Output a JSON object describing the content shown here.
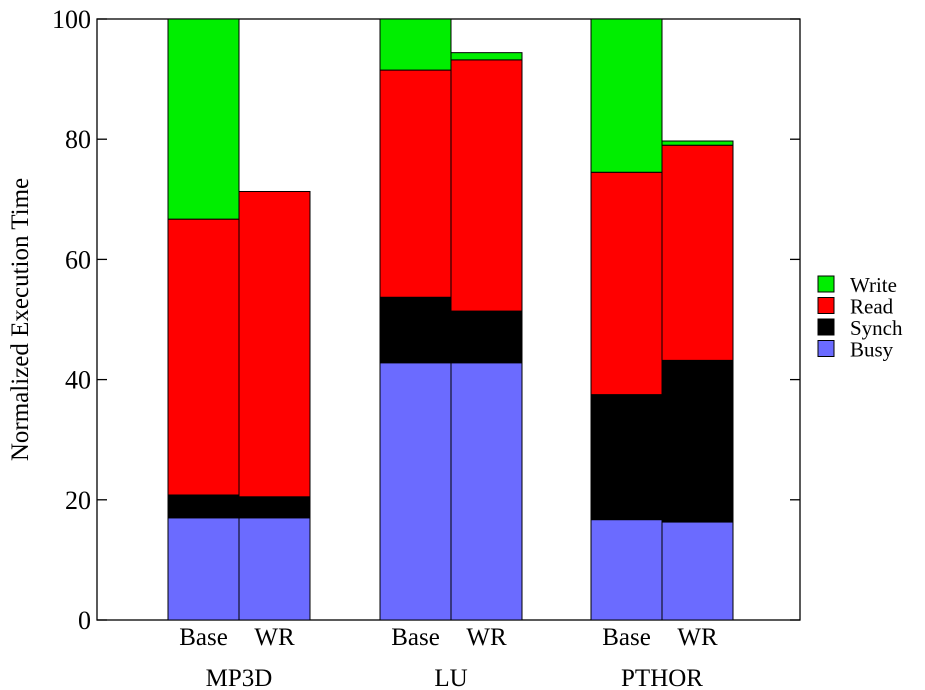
{
  "chart_data": {
    "type": "bar",
    "stacked": true,
    "ylabel": "Normalized Execution Time",
    "ylim": [
      0,
      100
    ],
    "yticks": [
      "0",
      "20",
      "40",
      "60",
      "80",
      "100"
    ],
    "legend_placement": "right",
    "groups": [
      {
        "name": "MP3D",
        "bars": [
          {
            "label": "Base",
            "values": {
              "Busy": 17.0,
              "Synch": 3.8,
              "Read": 45.9,
              "Write": 33.3
            }
          },
          {
            "label": "WR",
            "values": {
              "Busy": 17.0,
              "Synch": 3.5,
              "Read": 50.8,
              "Write": 0.0
            }
          }
        ]
      },
      {
        "name": "LU",
        "bars": [
          {
            "label": "Base",
            "values": {
              "Busy": 42.8,
              "Synch": 10.9,
              "Read": 37.8,
              "Write": 8.5
            }
          },
          {
            "label": "WR",
            "values": {
              "Busy": 42.8,
              "Synch": 8.6,
              "Read": 41.8,
              "Write": 1.2
            }
          }
        ]
      },
      {
        "name": "PTHOR",
        "bars": [
          {
            "label": "Base",
            "values": {
              "Busy": 16.7,
              "Synch": 20.8,
              "Read": 37.0,
              "Write": 25.5
            }
          },
          {
            "label": "WR",
            "values": {
              "Busy": 16.3,
              "Synch": 26.9,
              "Read": 35.8,
              "Write": 0.7
            }
          }
        ]
      }
    ],
    "series": [
      {
        "name": "Busy",
        "color": "#6b6bff"
      },
      {
        "name": "Synch",
        "color": "#000000"
      },
      {
        "name": "Read",
        "color": "#ff0000"
      },
      {
        "name": "Write",
        "color": "#00ee00"
      }
    ],
    "legend_order": [
      "Write",
      "Read",
      "Synch",
      "Busy"
    ]
  }
}
